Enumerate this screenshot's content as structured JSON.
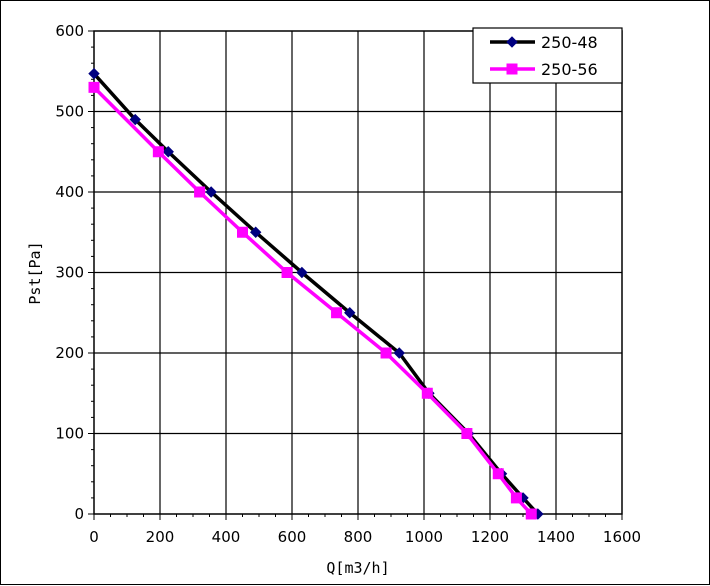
{
  "chart_data": {
    "type": "line",
    "xlabel": "Q[m3/h]",
    "ylabel": "Pst[Pa]",
    "xlim": [
      0,
      1600
    ],
    "ylim": [
      0,
      600
    ],
    "x_ticks": [
      0,
      200,
      400,
      600,
      800,
      1000,
      1200,
      1400,
      1600
    ],
    "y_ticks": [
      0,
      100,
      200,
      300,
      400,
      500,
      600
    ],
    "grid": true,
    "legend_position": "top-right",
    "series": [
      {
        "name": "250-48",
        "color": "#000000",
        "marker_color": "#000080",
        "marker": "diamond",
        "x": [
          0,
          125,
          225,
          355,
          490,
          630,
          775,
          925,
          1015,
          1135,
          1235,
          1300,
          1345
        ],
        "y": [
          547,
          490,
          450,
          400,
          350,
          300,
          250,
          200,
          150,
          100,
          50,
          20,
          0
        ]
      },
      {
        "name": "250-56",
        "color": "#ff00ff",
        "marker_color": "#ff00ff",
        "marker": "square",
        "x": [
          0,
          195,
          320,
          450,
          585,
          735,
          885,
          1010,
          1130,
          1225,
          1280,
          1325
        ],
        "y": [
          530,
          450,
          400,
          350,
          300,
          250,
          200,
          150,
          100,
          50,
          20,
          0
        ]
      }
    ]
  }
}
